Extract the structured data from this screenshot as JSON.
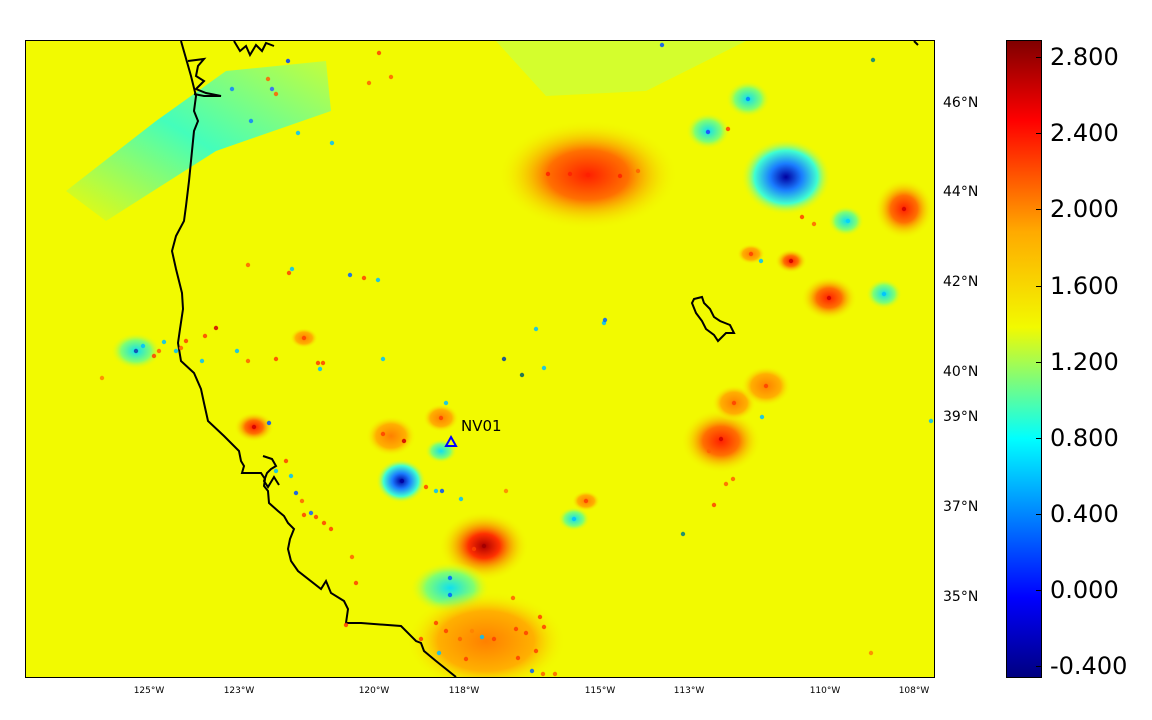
{
  "map": {
    "background_color": "#f2fa00",
    "lon_labels": [
      "125°W",
      "123°W",
      "120°W",
      "118°W",
      "115°W",
      "113°W",
      "110°W",
      "108°W"
    ],
    "lat_labels": [
      "46°N",
      "44°N",
      "42°N",
      "40°N",
      "39°N",
      "37°N",
      "35°N"
    ],
    "station": {
      "name": "NV01",
      "marker": "triangle-outline",
      "color": "#0000ff"
    }
  },
  "colorbar": {
    "ticks": [
      "2.800",
      "2.400",
      "2.000",
      "1.600",
      "1.200",
      "0.800",
      "0.400",
      "0.000",
      "-0.400"
    ],
    "min": -0.4,
    "max": 2.9,
    "colormap": "jet"
  },
  "anomalies": [
    {
      "lon": -115.0,
      "lat": 44.5,
      "value": 2.5
    },
    {
      "lon": -110.8,
      "lat": 44.4,
      "value": 0.1
    },
    {
      "lon": -108.5,
      "lat": 43.7,
      "value": 2.5
    },
    {
      "lon": -110.0,
      "lat": 41.5,
      "value": 2.6
    },
    {
      "lon": -111.8,
      "lat": 38.6,
      "value": 2.7
    },
    {
      "lon": -117.7,
      "lat": 36.2,
      "value": 2.9
    },
    {
      "lon": -119.3,
      "lat": 37.7,
      "value": 0.3
    },
    {
      "lon": -118.0,
      "lat": 35.3,
      "value": 0.9
    },
    {
      "lon": -124.4,
      "lat": 46.3,
      "value": 1.1
    },
    {
      "lon": -119.5,
      "lat": 39.0,
      "value": 2.4
    }
  ]
}
